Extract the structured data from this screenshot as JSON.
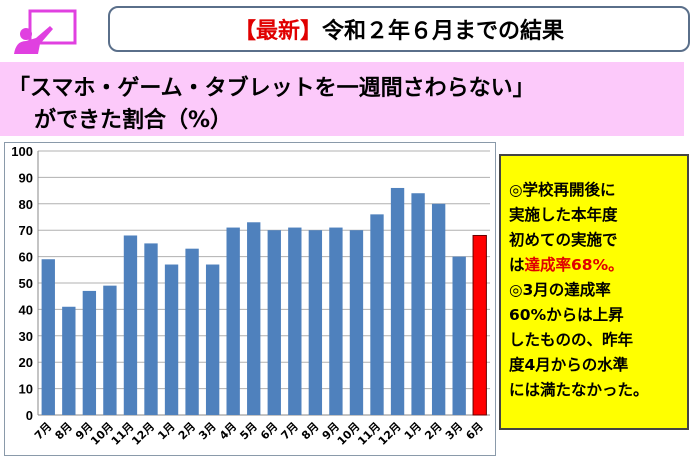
{
  "header": {
    "tag": "【最新】",
    "title": "令和２年６月までの結果"
  },
  "subtitle": {
    "line1": "「スマホ・ゲーム・タブレットを一週間さわらない」",
    "line2": "ができた割合（%）"
  },
  "note": {
    "l1": "◎学校再開後に",
    "l2": "実施した本年度",
    "l3": "初めての実施で",
    "l4a": "は",
    "l4b": "達成率68%。",
    "l5": "◎3月の達成率",
    "l6": "60%からは上昇",
    "l7": "したものの、昨年",
    "l8": "度4月からの水準",
    "l9": "には満たなかった。"
  },
  "colors": {
    "bar": "#4f81bd",
    "highlight": "#ff0000",
    "accent": "#e00000",
    "icon": "#e040e0"
  },
  "chart_data": {
    "type": "bar",
    "title": "「スマホ・ゲーム・タブレットを一週間さわらない」ができた割合（%）",
    "categories": [
      "7月",
      "8月",
      "9月",
      "10月",
      "11月",
      "12月",
      "1月",
      "2月",
      "3月",
      "4月",
      "5月",
      "6月",
      "7月",
      "8月",
      "9月",
      "10月",
      "11月",
      "12月",
      "1月",
      "2月",
      "3月",
      "6月"
    ],
    "values": [
      59,
      41,
      47,
      49,
      68,
      65,
      57,
      63,
      57,
      71,
      73,
      70,
      71,
      70,
      71,
      70,
      76,
      86,
      84,
      80,
      60,
      68
    ],
    "highlight_index": 21,
    "ylim": [
      0,
      100
    ],
    "yticks": [
      0,
      10,
      20,
      30,
      40,
      50,
      60,
      70,
      80,
      90,
      100
    ],
    "grid": true,
    "xlabel": "",
    "ylabel": ""
  }
}
